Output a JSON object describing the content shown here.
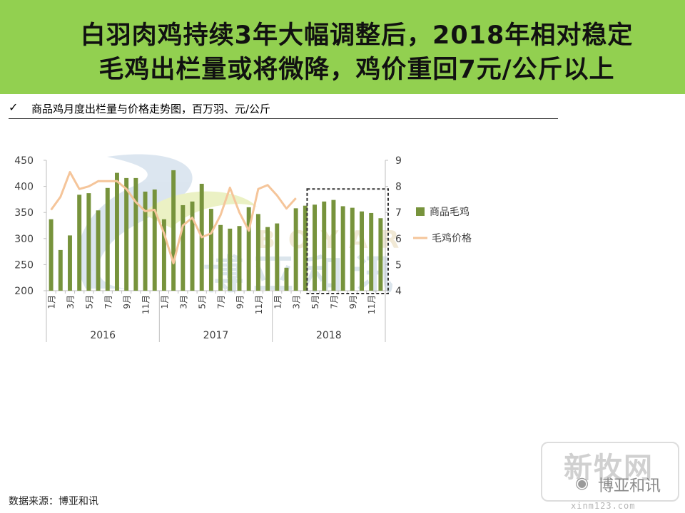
{
  "header": {
    "title_line1": "白羽肉鸡持续3年大幅调整后，2018年相对稳定",
    "title_line2": "毛鸡出栏量或将微降，鸡价重回7元/公斤以上"
  },
  "subtitle": {
    "check_icon": "✓",
    "text": "商品鸡月度出栏量与价格走势图，百万羽、元/公斤"
  },
  "source": "数据来源：博亚和讯",
  "watermark": {
    "bg_text": "博亚和讯",
    "bg_latin": "BOYAR",
    "box_text": "新牧网",
    "brand": "博亚和讯",
    "url": "xinm123.com",
    "wechat_icon": "wechat-icon"
  },
  "colors": {
    "header_bg": "#92d050",
    "bar": "#77933c",
    "line": "#f5c59a",
    "highlight_box": "#333333"
  },
  "chart_data": {
    "type": "bar+line",
    "years": [
      "2016",
      "2017",
      "2018"
    ],
    "month_labels": [
      "1月",
      "",
      "3月",
      "",
      "5月",
      "",
      "7月",
      "",
      "9月",
      "",
      "11月",
      "",
      "1月",
      "",
      "3月",
      "",
      "5月",
      "",
      "7月",
      "",
      "9月",
      "",
      "11月",
      "",
      "1月",
      "",
      "3月",
      "",
      "5月",
      "",
      "7月",
      "",
      "9月",
      "",
      "11月",
      ""
    ],
    "y_left": {
      "min": 200,
      "max": 450,
      "ticks": [
        "200",
        "250",
        "300",
        "350",
        "400",
        "450"
      ]
    },
    "y_right": {
      "min": 4,
      "max": 9,
      "ticks": [
        "4",
        "5",
        "6",
        "7",
        "8",
        "9"
      ]
    },
    "series": [
      {
        "name": "商品毛鸡",
        "axis": "left",
        "values": [
          337,
          278,
          306,
          384,
          387,
          354,
          397,
          426,
          416,
          416,
          390,
          394,
          337,
          431,
          364,
          371,
          405,
          357,
          326,
          319,
          324,
          360,
          347,
          322,
          329,
          244,
          358,
          363,
          365,
          371,
          374,
          362,
          359,
          352,
          349,
          339
        ]
      },
      {
        "name": "毛鸡价格",
        "axis": "right",
        "values": [
          7.1,
          7.6,
          8.55,
          7.9,
          8.0,
          8.2,
          8.2,
          8.2,
          7.9,
          7.4,
          7.05,
          7.1,
          6.2,
          5.05,
          6.5,
          6.8,
          6.05,
          6.2,
          6.9,
          7.95,
          7.0,
          6.3,
          7.9,
          8.05,
          7.65,
          7.15,
          7.55
        ]
      }
    ],
    "highlight": {
      "from_index": 28,
      "to_index": 35
    },
    "legend_position": "right"
  }
}
